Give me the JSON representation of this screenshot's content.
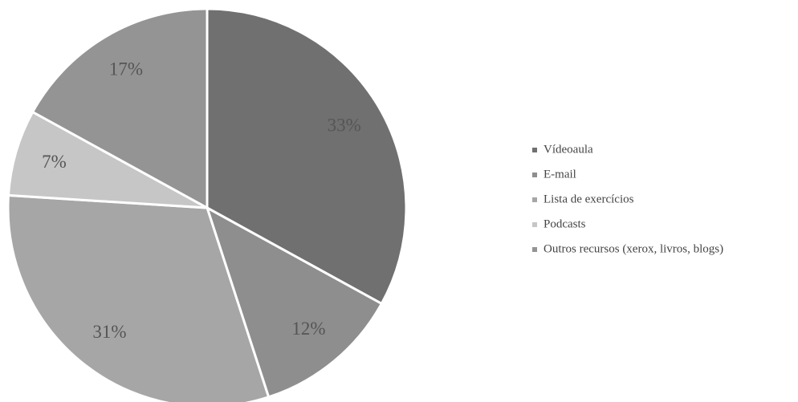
{
  "chart_data": {
    "type": "pie",
    "categories": [
      "Vídeoaula",
      "E-mail",
      "Lista de exercícios",
      "Podcasts",
      "Outros recursos (xerox, livros, blogs)"
    ],
    "values": [
      33,
      12,
      31,
      7,
      17
    ],
    "value_labels": [
      "33%",
      "12%",
      "31%",
      "7%",
      "17%"
    ],
    "colors": [
      "#707070",
      "#8e8e8e",
      "#a6a6a6",
      "#c6c6c6",
      "#949494"
    ],
    "legend": "right"
  }
}
